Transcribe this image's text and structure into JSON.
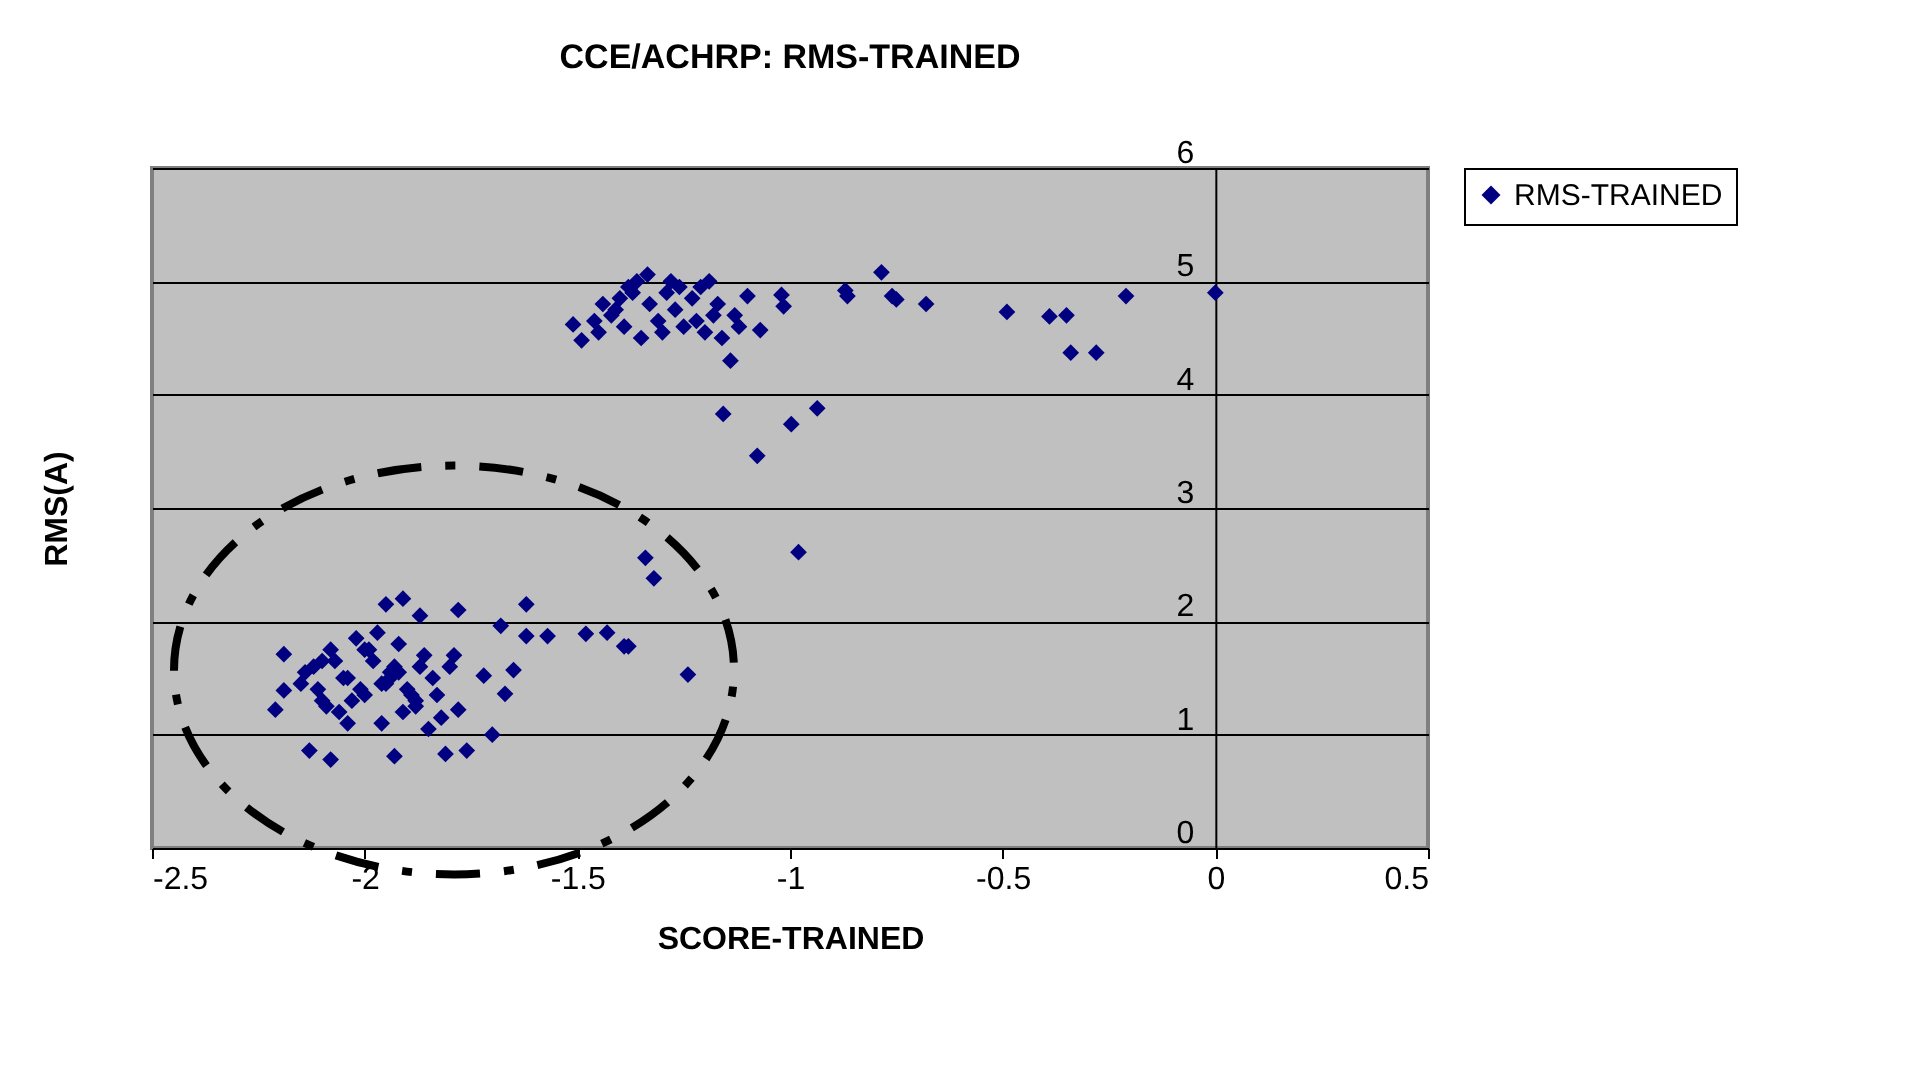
{
  "chart_data": {
    "type": "scatter",
    "title": "CCE/ACHRP: RMS-TRAINED",
    "xlabel": "SCORE-TRAINED",
    "ylabel": "RMS(A)",
    "xlim": [
      -2.5,
      0.5
    ],
    "xticks": [
      -2.5,
      -2,
      -1.5,
      -1,
      -0.5,
      0,
      0.5
    ],
    "ylim": [
      0,
      6
    ],
    "yticks": [
      0,
      1,
      2,
      3,
      4,
      5,
      6
    ],
    "grid": "y",
    "legend": "right",
    "marker": "diamond",
    "series": [
      {
        "name": "RMS-TRAINED",
        "color": "#000080",
        "x": [
          -0.785,
          -0.87,
          -0.865,
          -0.76,
          -0.75,
          -0.68,
          -0.49,
          -0.39,
          -0.35,
          -0.34,
          -0.28,
          -0.21,
          0,
          -1.157,
          -1.077,
          -0.997,
          -0.936,
          -0.98,
          -1.34,
          -1.32,
          -1.51,
          -1.49,
          -1.335,
          -1.19,
          -1.14,
          -1.07,
          -1.02,
          -1.015,
          -1.1,
          -1.45,
          -1.42,
          -1.4,
          -1.38,
          -1.36,
          -1.33,
          -1.31,
          -1.29,
          -1.27,
          -1.25,
          -1.23,
          -1.21,
          -1.18,
          -1.16,
          -1.44,
          -1.39,
          -1.35,
          -1.3,
          -1.26,
          -1.22,
          -1.17,
          -1.13,
          -1.41,
          -1.37,
          -1.28,
          -1.2,
          -1.12,
          -1.46,
          -1.43,
          -1.39,
          -1.38,
          -1.24,
          -1.95,
          -1.91,
          -1.87,
          -1.78,
          -1.62,
          -1.68,
          -1.62,
          -1.57,
          -1.48,
          -2.19,
          -2.21,
          -2.19,
          -2.13,
          -2.08,
          -1.93,
          -1.81,
          -1.76,
          -1.7,
          -1.78,
          -1.65,
          -1.67,
          -1.72,
          -2.15,
          -2.12,
          -2.1,
          -2.08,
          -2.06,
          -2.04,
          -2.02,
          -2.0,
          -1.98,
          -1.96,
          -1.94,
          -1.92,
          -1.9,
          -1.88,
          -1.86,
          -1.84,
          -1.82,
          -1.8,
          -2.14,
          -2.11,
          -2.07,
          -2.03,
          -1.99,
          -1.95,
          -1.91,
          -1.87,
          -1.83,
          -1.79,
          -2.09,
          -2.05,
          -2.01,
          -1.97,
          -1.93,
          -1.89,
          -1.85,
          -2.0,
          -1.96,
          -1.92,
          -1.88,
          -2.1,
          -2.04,
          -1.94
        ],
        "values": [
          5.08,
          4.92,
          4.87,
          4.87,
          4.84,
          4.8,
          4.73,
          4.69,
          4.7,
          4.37,
          4.37,
          4.87,
          4.9,
          3.83,
          3.46,
          3.74,
          3.88,
          2.61,
          2.56,
          2.38,
          4.62,
          4.48,
          5.06,
          5.0,
          4.3,
          4.57,
          4.88,
          4.78,
          4.87,
          4.55,
          4.7,
          4.85,
          4.95,
          5.0,
          4.8,
          4.65,
          4.9,
          4.75,
          4.6,
          4.85,
          4.95,
          4.7,
          4.5,
          4.8,
          4.6,
          4.5,
          4.55,
          4.95,
          4.65,
          4.8,
          4.7,
          4.75,
          4.9,
          5.0,
          4.55,
          4.6,
          4.65,
          1.9,
          1.78,
          1.78,
          1.53,
          2.15,
          2.2,
          2.05,
          2.1,
          2.15,
          1.96,
          1.87,
          1.87,
          1.89,
          1.71,
          1.22,
          1.39,
          0.86,
          0.78,
          0.81,
          0.83,
          0.86,
          1.0,
          1.22,
          1.57,
          1.36,
          1.52,
          1.45,
          1.6,
          1.3,
          1.75,
          1.2,
          1.5,
          1.85,
          1.35,
          1.65,
          1.1,
          1.55,
          1.8,
          1.4,
          1.25,
          1.7,
          1.5,
          1.15,
          1.6,
          1.55,
          1.4,
          1.65,
          1.3,
          1.75,
          1.45,
          1.2,
          1.6,
          1.35,
          1.7,
          1.25,
          1.5,
          1.4,
          1.9,
          1.6,
          1.35,
          1.05,
          1.75,
          1.45,
          1.55,
          1.3,
          1.65,
          1.1,
          1.5
        ]
      }
    ]
  }
}
